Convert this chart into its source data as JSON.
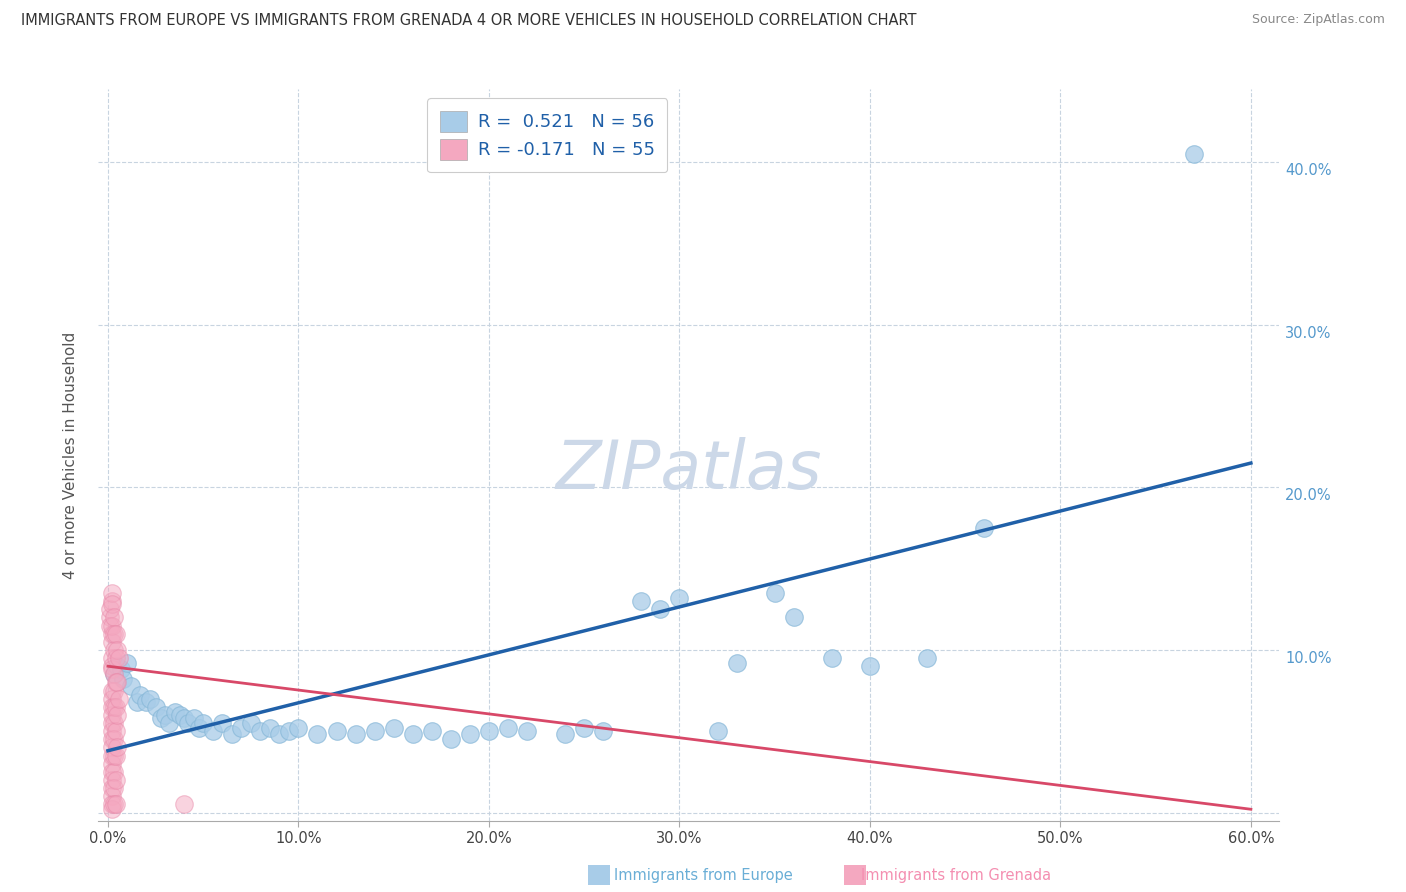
{
  "title": "IMMIGRANTS FROM EUROPE VS IMMIGRANTS FROM GRENADA 4 OR MORE VEHICLES IN HOUSEHOLD CORRELATION CHART",
  "source": "Source: ZipAtlas.com",
  "ylabel": "4 or more Vehicles in Household",
  "xlim": [
    -0.005,
    0.615
  ],
  "ylim": [
    -0.005,
    0.445
  ],
  "xticks": [
    0.0,
    0.1,
    0.2,
    0.3,
    0.4,
    0.5,
    0.6
  ],
  "xtick_labels": [
    "0.0%",
    "10.0%",
    "20.0%",
    "30.0%",
    "40.0%",
    "50.0%",
    "60.0%"
  ],
  "yticks_right": [
    0.0,
    0.1,
    0.2,
    0.3,
    0.4
  ],
  "ytick_labels_right": [
    "",
    "10.0%",
    "20.0%",
    "30.0%",
    "40.0%"
  ],
  "watermark": "ZIPatlas",
  "watermark_color": "#ccd8e8",
  "blue_color": "#a8cce8",
  "blue_edge_color": "#88b8d8",
  "pink_color": "#f4a8c0",
  "pink_edge_color": "#e888a8",
  "blue_line_color": "#2060a8",
  "pink_line_color": "#d84868",
  "europe_scatter": [
    [
      0.003,
      0.085
    ],
    [
      0.005,
      0.09
    ],
    [
      0.007,
      0.088
    ],
    [
      0.008,
      0.082
    ],
    [
      0.01,
      0.092
    ],
    [
      0.012,
      0.078
    ],
    [
      0.015,
      0.068
    ],
    [
      0.017,
      0.072
    ],
    [
      0.02,
      0.068
    ],
    [
      0.022,
      0.07
    ],
    [
      0.025,
      0.065
    ],
    [
      0.028,
      0.058
    ],
    [
      0.03,
      0.06
    ],
    [
      0.032,
      0.055
    ],
    [
      0.035,
      0.062
    ],
    [
      0.038,
      0.06
    ],
    [
      0.04,
      0.058
    ],
    [
      0.042,
      0.055
    ],
    [
      0.045,
      0.058
    ],
    [
      0.048,
      0.052
    ],
    [
      0.05,
      0.055
    ],
    [
      0.055,
      0.05
    ],
    [
      0.06,
      0.055
    ],
    [
      0.065,
      0.048
    ],
    [
      0.07,
      0.052
    ],
    [
      0.075,
      0.055
    ],
    [
      0.08,
      0.05
    ],
    [
      0.085,
      0.052
    ],
    [
      0.09,
      0.048
    ],
    [
      0.095,
      0.05
    ],
    [
      0.1,
      0.052
    ],
    [
      0.11,
      0.048
    ],
    [
      0.12,
      0.05
    ],
    [
      0.13,
      0.048
    ],
    [
      0.14,
      0.05
    ],
    [
      0.15,
      0.052
    ],
    [
      0.16,
      0.048
    ],
    [
      0.17,
      0.05
    ],
    [
      0.18,
      0.045
    ],
    [
      0.19,
      0.048
    ],
    [
      0.2,
      0.05
    ],
    [
      0.21,
      0.052
    ],
    [
      0.22,
      0.05
    ],
    [
      0.24,
      0.048
    ],
    [
      0.25,
      0.052
    ],
    [
      0.26,
      0.05
    ],
    [
      0.28,
      0.13
    ],
    [
      0.29,
      0.125
    ],
    [
      0.3,
      0.132
    ],
    [
      0.32,
      0.05
    ],
    [
      0.33,
      0.092
    ],
    [
      0.35,
      0.135
    ],
    [
      0.36,
      0.12
    ],
    [
      0.38,
      0.095
    ],
    [
      0.4,
      0.09
    ],
    [
      0.43,
      0.095
    ],
    [
      0.46,
      0.175
    ],
    [
      0.57,
      0.405
    ]
  ],
  "grenada_scatter": [
    [
      0.001,
      0.12
    ],
    [
      0.001,
      0.125
    ],
    [
      0.001,
      0.115
    ],
    [
      0.002,
      0.13
    ],
    [
      0.002,
      0.135
    ],
    [
      0.002,
      0.128
    ],
    [
      0.002,
      0.11
    ],
    [
      0.002,
      0.105
    ],
    [
      0.002,
      0.115
    ],
    [
      0.002,
      0.095
    ],
    [
      0.002,
      0.09
    ],
    [
      0.002,
      0.088
    ],
    [
      0.002,
      0.075
    ],
    [
      0.002,
      0.07
    ],
    [
      0.002,
      0.065
    ],
    [
      0.002,
      0.06
    ],
    [
      0.002,
      0.055
    ],
    [
      0.002,
      0.05
    ],
    [
      0.002,
      0.045
    ],
    [
      0.002,
      0.04
    ],
    [
      0.002,
      0.035
    ],
    [
      0.002,
      0.03
    ],
    [
      0.002,
      0.025
    ],
    [
      0.002,
      0.02
    ],
    [
      0.002,
      0.015
    ],
    [
      0.002,
      0.01
    ],
    [
      0.002,
      0.005
    ],
    [
      0.002,
      0.002
    ],
    [
      0.003,
      0.12
    ],
    [
      0.003,
      0.11
    ],
    [
      0.003,
      0.1
    ],
    [
      0.003,
      0.085
    ],
    [
      0.003,
      0.075
    ],
    [
      0.003,
      0.065
    ],
    [
      0.003,
      0.055
    ],
    [
      0.003,
      0.045
    ],
    [
      0.003,
      0.035
    ],
    [
      0.003,
      0.025
    ],
    [
      0.003,
      0.015
    ],
    [
      0.003,
      0.005
    ],
    [
      0.004,
      0.11
    ],
    [
      0.004,
      0.095
    ],
    [
      0.004,
      0.08
    ],
    [
      0.004,
      0.065
    ],
    [
      0.004,
      0.05
    ],
    [
      0.004,
      0.035
    ],
    [
      0.004,
      0.02
    ],
    [
      0.004,
      0.005
    ],
    [
      0.005,
      0.1
    ],
    [
      0.005,
      0.08
    ],
    [
      0.005,
      0.06
    ],
    [
      0.005,
      0.04
    ],
    [
      0.006,
      0.095
    ],
    [
      0.006,
      0.07
    ],
    [
      0.04,
      0.005
    ]
  ],
  "blue_regression": {
    "x_start": 0.0,
    "y_start": 0.038,
    "x_end": 0.6,
    "y_end": 0.215
  },
  "pink_regression": {
    "x_start": 0.0,
    "y_start": 0.09,
    "x_end": 0.6,
    "y_end": 0.002
  }
}
